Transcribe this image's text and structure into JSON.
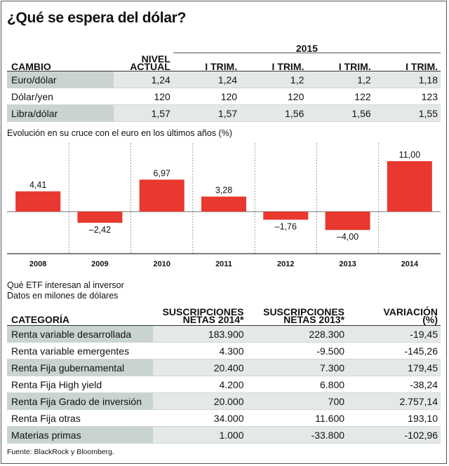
{
  "title": "¿Qué se espera del dólar?",
  "table1": {
    "header": {
      "cambio": "CAMBIO",
      "nivel": "NIVEL",
      "actual": "ACTUAL",
      "year": "2015",
      "trims": [
        "I TRIM.",
        "I TRIM.",
        "I TRIM.",
        "I TRIM."
      ]
    },
    "rows": [
      {
        "label": "Euro/dólar",
        "values": [
          "1,24",
          "1,24",
          "1,2",
          "1,2",
          "1,18"
        ]
      },
      {
        "label": "Dólar/yen",
        "values": [
          "120",
          "120",
          "120",
          "122",
          "123"
        ]
      },
      {
        "label": "Libra/dólar",
        "values": [
          "1,57",
          "1,57",
          "1,56",
          "1,56",
          "1,55"
        ]
      }
    ]
  },
  "chart_data": {
    "type": "bar",
    "title": "Evolución en su cruce con el euro en los últimos años (%)",
    "categories": [
      "2008",
      "2009",
      "2010",
      "2011",
      "2012",
      "2013",
      "2014"
    ],
    "values": [
      4.41,
      -2.42,
      6.97,
      3.28,
      -1.76,
      -4.0,
      11.0
    ],
    "value_labels": [
      "4,41",
      "–2,42",
      "6,97",
      "3,28",
      "–1,76",
      "–4,00",
      "11,00"
    ],
    "bar_color": "#e8382f"
  },
  "table2": {
    "intro1": "Qué ETF interesan al inversor",
    "intro2": "Datos en milones de dólares",
    "header": {
      "cat": "CATEGORÍA",
      "s14a": "SUSCRIPCIONES",
      "s14b": "NETAS 2014*",
      "s13a": "SUSCRIPCIONES",
      "s13b": "NETAS 2013*",
      "vara": "VARIACIÓN",
      "varb": "(%)"
    },
    "rows": [
      {
        "label": "Renta variable desarrollada",
        "v1": "183.900",
        "v2": "228.300",
        "v3": "-19,45"
      },
      {
        "label": "Renta variable emergentes",
        "v1": "4.300",
        "v2": "-9.500",
        "v3": "-145,26"
      },
      {
        "label": "Renta Fija gubernamental",
        "v1": "20.400",
        "v2": "7.300",
        "v3": "179,45"
      },
      {
        "label": "Renta Fija High yield",
        "v1": "4.200",
        "v2": "6.800",
        "v3": "-38,24"
      },
      {
        "label": "Renta Fija Grado de inversión",
        "v1": "20.000",
        "v2": "700",
        "v3": "2.757,14"
      },
      {
        "label": "Renta Fija otras",
        "v1": "34.000",
        "v2": "11.600",
        "v3": "193,10"
      },
      {
        "label": "Materias primas",
        "v1": "1.000",
        "v2": "-33.800",
        "v3": "-102,96"
      }
    ]
  },
  "footer": "Fuente: BlackRock y Bloomberg."
}
